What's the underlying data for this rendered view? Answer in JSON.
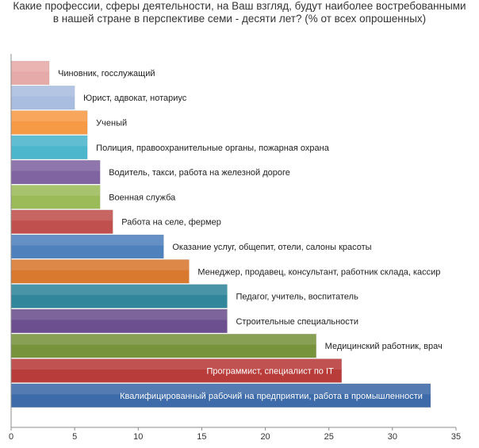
{
  "chart_data": {
    "type": "bar",
    "orientation": "horizontal",
    "title_lines": [
      "Какие профессии, сферы деятельности, на Ваш взгляд, будут наиболее востребованными",
      "в нашей стране в перспективе семи - десяти лет? (% от всех опрошенных)"
    ],
    "categories": [
      "Чиновник, госслужащий",
      "Юрист, адвокат, нотариус",
      "Ученый",
      "Полиция, правоохранительные органы, пожарная охрана",
      "Водитель, такси, работа на железной дороге",
      "Военная служба",
      "Работа на селе, фермер",
      "Оказание услуг, общепит, отели, салоны красоты",
      "Менеджер, продавец, консультант, работник склада, кассир",
      "Педагог, учитель, воспитатель",
      "Строительные специальности",
      "Медицинский работник, врач",
      "Программист, специалист по IT",
      "Квалифицированный рабочий на предприятии, работа в промышленности"
    ],
    "values": [
      3,
      5,
      6,
      6,
      7,
      7,
      8,
      12,
      14,
      17,
      17,
      24,
      26,
      33
    ],
    "colors": [
      "#e6aaa8",
      "#a9bde0",
      "#f79a45",
      "#4cb6cc",
      "#8064a2",
      "#9bbb59",
      "#c0504d",
      "#4f81bd",
      "#d9782f",
      "#31869b",
      "#6b4f8e",
      "#77933c",
      "#b83c3a",
      "#3d6aa8"
    ],
    "label_inside": [
      false,
      false,
      false,
      false,
      false,
      false,
      false,
      false,
      false,
      false,
      false,
      false,
      true,
      true
    ],
    "xlim": [
      0,
      35
    ],
    "xticks": [
      "0",
      "5",
      "10",
      "15",
      "20",
      "25",
      "30",
      "35"
    ],
    "xlabel": "",
    "ylabel": ""
  }
}
